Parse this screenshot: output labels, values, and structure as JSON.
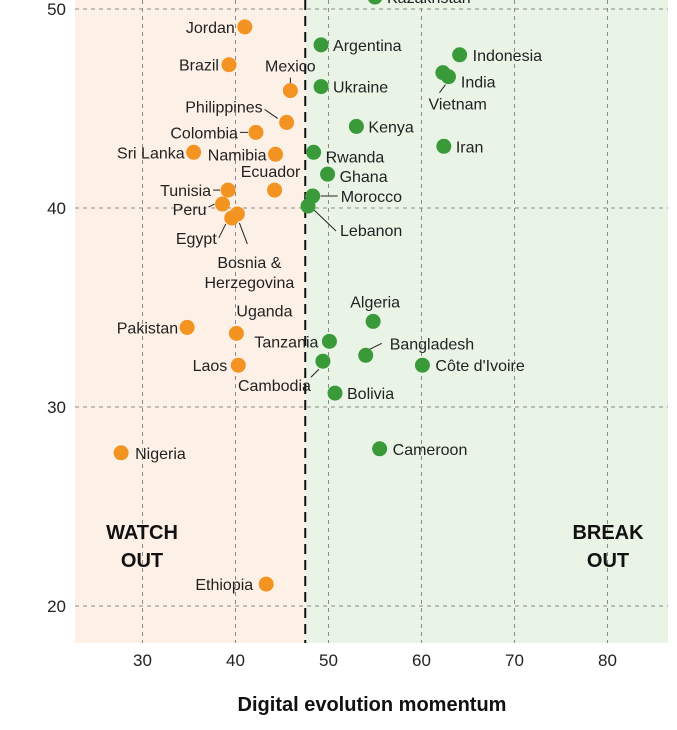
{
  "chart_data": {
    "type": "scatter",
    "title": "",
    "xlabel": "Digital evolution momentum",
    "ylabel": "",
    "xlim": [
      23,
      87
    ],
    "ylim": [
      18.2,
      50
    ],
    "x_ticks": [
      30,
      40,
      50,
      60,
      70,
      80
    ],
    "y_ticks": [
      20,
      30,
      40,
      50
    ],
    "grid": true,
    "divider_x": 47.5,
    "zones": [
      {
        "label_lines": [
          "WATCH",
          "OUT"
        ],
        "color": "#fdf0e6",
        "side": "left"
      },
      {
        "label_lines": [
          "BREAK",
          "OUT"
        ],
        "color": "#e9f4e7",
        "side": "right"
      }
    ],
    "colors": {
      "watch_out": "#f39422",
      "break_out": "#3a9a3a"
    },
    "series": [
      {
        "group": "watch_out",
        "points": [
          {
            "name": "Jordan",
            "x": 41.0,
            "y": 49.1
          },
          {
            "name": "Brazil",
            "x": 39.3,
            "y": 47.2
          },
          {
            "name": "Mexico",
            "x": 45.9,
            "y": 45.9
          },
          {
            "name": "Philippines",
            "x": 45.5,
            "y": 44.3
          },
          {
            "name": "Colombia",
            "x": 42.2,
            "y": 43.8
          },
          {
            "name": "Sri Lanka",
            "x": 35.5,
            "y": 42.8
          },
          {
            "name": "Namibia",
            "x": 44.3,
            "y": 42.7
          },
          {
            "name": "Ecuador",
            "x": 44.2,
            "y": 40.9
          },
          {
            "name": "Tunisia",
            "x": 39.2,
            "y": 40.9
          },
          {
            "name": "Peru",
            "x": 38.6,
            "y": 40.2
          },
          {
            "name": "Egypt",
            "x": 39.6,
            "y": 39.5
          },
          {
            "name": "Bosnia & Herzegovina",
            "x": 40.2,
            "y": 39.7
          },
          {
            "name": "Uganda",
            "x": 40.1,
            "y": 33.7
          },
          {
            "name": "Pakistan",
            "x": 34.8,
            "y": 34.0
          },
          {
            "name": "Laos",
            "x": 40.3,
            "y": 32.1
          },
          {
            "name": "Nigeria",
            "x": 27.7,
            "y": 27.7
          },
          {
            "name": "Ethiopia",
            "x": 43.3,
            "y": 21.1
          }
        ]
      },
      {
        "group": "break_out",
        "points": [
          {
            "name": "Kazakhstan",
            "x": 55.0,
            "y": 50.6
          },
          {
            "name": "Argentina",
            "x": 49.2,
            "y": 48.2
          },
          {
            "name": "Indonesia",
            "x": 64.1,
            "y": 47.7
          },
          {
            "name": "India",
            "x": 62.3,
            "y": 46.8
          },
          {
            "name": "Vietnam",
            "x": 62.9,
            "y": 46.6
          },
          {
            "name": "Ukraine",
            "x": 49.2,
            "y": 46.1
          },
          {
            "name": "Kenya",
            "x": 53.0,
            "y": 44.1
          },
          {
            "name": "Iran",
            "x": 62.4,
            "y": 43.1
          },
          {
            "name": "Rwanda",
            "x": 48.4,
            "y": 42.8
          },
          {
            "name": "Ghana",
            "x": 49.9,
            "y": 41.7
          },
          {
            "name": "Morocco",
            "x": 48.3,
            "y": 40.6
          },
          {
            "name": "Lebanon",
            "x": 47.8,
            "y": 40.1
          },
          {
            "name": "Algeria",
            "x": 54.8,
            "y": 34.3
          },
          {
            "name": "Tanzania",
            "x": 50.1,
            "y": 33.3
          },
          {
            "name": "Bangladesh",
            "x": 54.0,
            "y": 32.6
          },
          {
            "name": "Cambodia",
            "x": 49.4,
            "y": 32.3
          },
          {
            "name": "Côte d'Ivoire",
            "x": 60.1,
            "y": 32.1
          },
          {
            "name": "Bolivia",
            "x": 50.7,
            "y": 30.7
          },
          {
            "name": "Cameroon",
            "x": 55.5,
            "y": 27.9
          }
        ]
      }
    ]
  }
}
